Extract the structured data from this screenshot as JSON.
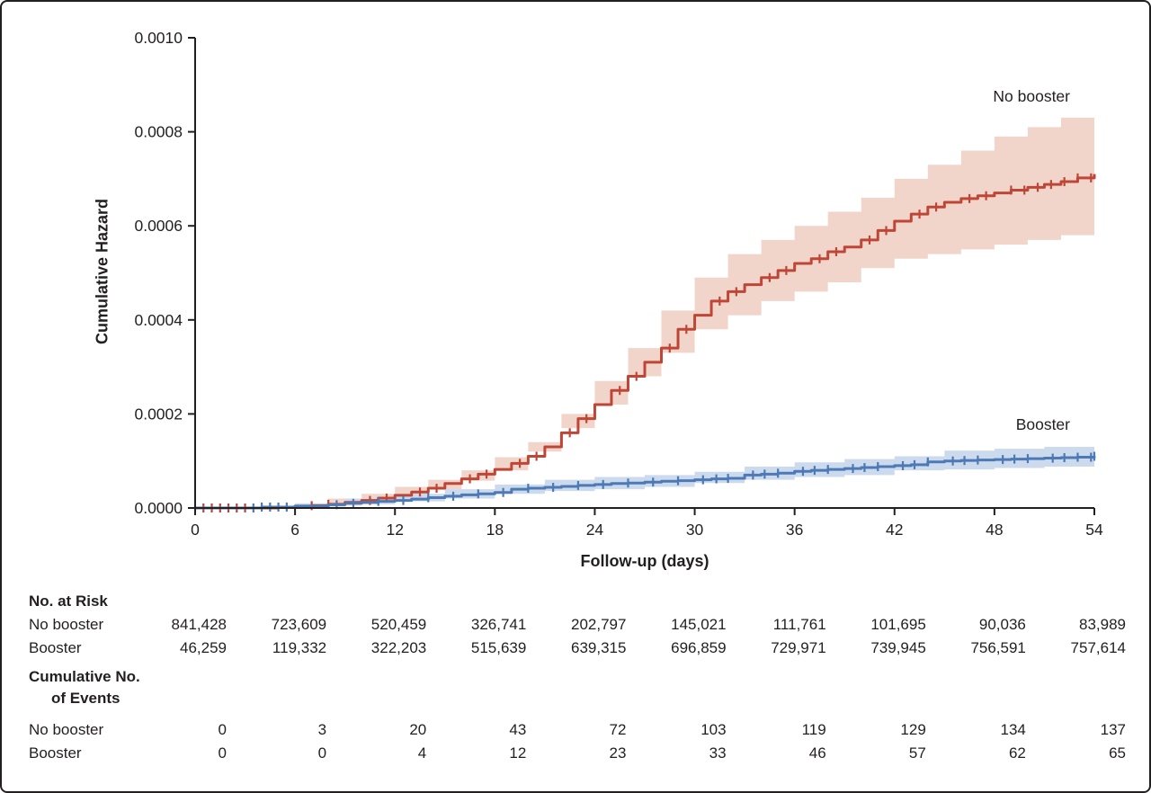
{
  "figure": {
    "background": "#ffffff",
    "border_color": "#231f20"
  },
  "chart_data": {
    "type": "line",
    "subtype": "cumulative-hazard-step-with-ci-bands",
    "title": "",
    "xlabel": "Follow-up (days)",
    "ylabel": "Cumulative Hazard",
    "xlim": [
      0,
      54
    ],
    "ylim": [
      0,
      0.001
    ],
    "grid": false,
    "legend_position": "curve-end-labels",
    "xticks": [
      {
        "v": 0,
        "label": "0"
      },
      {
        "v": 6,
        "label": "6"
      },
      {
        "v": 12,
        "label": "12"
      },
      {
        "v": 18,
        "label": "18"
      },
      {
        "v": 24,
        "label": "24"
      },
      {
        "v": 30,
        "label": "30"
      },
      {
        "v": 36,
        "label": "36"
      },
      {
        "v": 42,
        "label": "42"
      },
      {
        "v": 48,
        "label": "48"
      },
      {
        "v": 54,
        "label": "54"
      }
    ],
    "yticks": [
      {
        "v": 0.0,
        "label": "0.0000"
      },
      {
        "v": 0.0002,
        "label": "0.0002"
      },
      {
        "v": 0.0004,
        "label": "0.0004"
      },
      {
        "v": 0.0006,
        "label": "0.0006"
      },
      {
        "v": 0.0008,
        "label": "0.0008"
      },
      {
        "v": 0.001,
        "label": "0.0010"
      }
    ],
    "series": [
      {
        "name": "No booster",
        "curve_name": "no-booster-curve",
        "band_name": "no-booster-ci-band",
        "color": "#bf4637",
        "band_color": "#f1d5cb",
        "points": [
          [
            0,
            0
          ],
          [
            5,
            2e-06
          ],
          [
            7,
            5e-06
          ],
          [
            8,
            8e-06
          ],
          [
            9,
            1.2e-05
          ],
          [
            10,
            1.6e-05
          ],
          [
            11,
            2.1e-05
          ],
          [
            12,
            2.7e-05
          ],
          [
            13,
            3.4e-05
          ],
          [
            14,
            4.2e-05
          ],
          [
            15,
            5.2e-05
          ],
          [
            16,
            6.2e-05
          ],
          [
            17,
            7.2e-05
          ],
          [
            18,
            8.2e-05
          ],
          [
            19,
            9.5e-05
          ],
          [
            20,
            0.00011
          ],
          [
            21,
            0.00013
          ],
          [
            22,
            0.00016
          ],
          [
            23,
            0.00019
          ],
          [
            24,
            0.00022
          ],
          [
            25,
            0.00025
          ],
          [
            26,
            0.00028
          ],
          [
            27,
            0.00031
          ],
          [
            28,
            0.00034
          ],
          [
            29,
            0.00038
          ],
          [
            30,
            0.00041
          ],
          [
            31,
            0.00044
          ],
          [
            32,
            0.00046
          ],
          [
            33,
            0.000475
          ],
          [
            34,
            0.00049
          ],
          [
            35,
            0.000505
          ],
          [
            36,
            0.00052
          ],
          [
            37,
            0.00053
          ],
          [
            38,
            0.000545
          ],
          [
            39,
            0.000555
          ],
          [
            40,
            0.00057
          ],
          [
            41,
            0.00059
          ],
          [
            42,
            0.00061
          ],
          [
            43,
            0.000625
          ],
          [
            44,
            0.00064
          ],
          [
            45,
            0.00065
          ],
          [
            46,
            0.000658
          ],
          [
            47,
            0.000664
          ],
          [
            48,
            0.00067
          ],
          [
            49,
            0.000676
          ],
          [
            50,
            0.000682
          ],
          [
            51,
            0.000688
          ],
          [
            52,
            0.000694
          ],
          [
            53,
            0.000702
          ],
          [
            54,
            0.00071
          ]
        ],
        "band": [
          [
            8,
            0,
            2e-05
          ],
          [
            10,
            5e-06,
            3e-05
          ],
          [
            12,
            1.4e-05,
            4.5e-05
          ],
          [
            14,
            2.5e-05,
            6e-05
          ],
          [
            16,
            4e-05,
            8e-05
          ],
          [
            18,
            5.8e-05,
            0.000108
          ],
          [
            20,
            8e-05,
            0.00014
          ],
          [
            22,
            0.00012,
            0.0002
          ],
          [
            24,
            0.00017,
            0.00027
          ],
          [
            26,
            0.00022,
            0.00034
          ],
          [
            28,
            0.00028,
            0.00042
          ],
          [
            30,
            0.00033,
            0.00049
          ],
          [
            32,
            0.00038,
            0.00054
          ],
          [
            34,
            0.00041,
            0.00057
          ],
          [
            36,
            0.00044,
            0.0006
          ],
          [
            38,
            0.00046,
            0.00063
          ],
          [
            40,
            0.00048,
            0.00066
          ],
          [
            42,
            0.00051,
            0.0007
          ],
          [
            44,
            0.00053,
            0.00073
          ],
          [
            46,
            0.00054,
            0.00076
          ],
          [
            48,
            0.00055,
            0.00079
          ],
          [
            50,
            0.00056,
            0.00081
          ],
          [
            52,
            0.00057,
            0.00083
          ],
          [
            54,
            0.00058,
            0.00085
          ]
        ],
        "censor_days": [
          0.5,
          1,
          1.5,
          2,
          2.5,
          3,
          7,
          8,
          10.5,
          11.5,
          13.5,
          14.5,
          16.5,
          17.5,
          19.5,
          20.5,
          22.5,
          23.5,
          25.5,
          26.5,
          28.5,
          29.5,
          31.5,
          32.5,
          34.5,
          35.5,
          37.5,
          38.5,
          40.5,
          41.5,
          43.5,
          44.5,
          46.5,
          47.5,
          49,
          49.8,
          50.6,
          51.4,
          52.2,
          53,
          53.8
        ]
      },
      {
        "name": "Booster",
        "curve_name": "booster-curve",
        "band_name": "booster-ci-band",
        "color": "#4d79b5",
        "band_color": "#ccdaee",
        "points": [
          [
            0,
            0
          ],
          [
            4,
            2e-06
          ],
          [
            6,
            4e-06
          ],
          [
            8,
            7e-06
          ],
          [
            9,
            1e-05
          ],
          [
            10,
            1.2e-05
          ],
          [
            11,
            1.4e-05
          ],
          [
            12,
            1.6e-05
          ],
          [
            13,
            1.9e-05
          ],
          [
            14,
            2.2e-05
          ],
          [
            15,
            2.5e-05
          ],
          [
            16,
            2.8e-05
          ],
          [
            17,
            3e-05
          ],
          [
            18,
            3.3e-05
          ],
          [
            19,
            4e-05
          ],
          [
            20,
            4.2e-05
          ],
          [
            21,
            4.4e-05
          ],
          [
            22,
            4.6e-05
          ],
          [
            23,
            4.8e-05
          ],
          [
            24,
            5e-05
          ],
          [
            25,
            5.2e-05
          ],
          [
            26,
            5.3e-05
          ],
          [
            27,
            5.5e-05
          ],
          [
            28,
            5.7e-05
          ],
          [
            29,
            5.8e-05
          ],
          [
            30,
            6e-05
          ],
          [
            31,
            6.2e-05
          ],
          [
            32,
            6.3e-05
          ],
          [
            33,
            7e-05
          ],
          [
            34,
            7.2e-05
          ],
          [
            35,
            7.4e-05
          ],
          [
            36,
            7.8e-05
          ],
          [
            37,
            8e-05
          ],
          [
            38,
            8.2e-05
          ],
          [
            39,
            8.4e-05
          ],
          [
            40,
            8.6e-05
          ],
          [
            41,
            8.8e-05
          ],
          [
            42,
            9e-05
          ],
          [
            43,
            9.2e-05
          ],
          [
            44,
            9.8e-05
          ],
          [
            45,
            0.0001
          ],
          [
            46,
            0.000101
          ],
          [
            47,
            0.000102
          ],
          [
            48,
            0.000103
          ],
          [
            49,
            0.000104
          ],
          [
            50,
            0.000105
          ],
          [
            51,
            0.000106
          ],
          [
            52,
            0.000107
          ],
          [
            53,
            0.000108
          ],
          [
            54,
            0.00011
          ]
        ],
        "band": [
          [
            6,
            0,
            1e-05
          ],
          [
            9,
            3e-06,
            2e-05
          ],
          [
            12,
            8e-06,
            3e-05
          ],
          [
            15,
            1.4e-05,
            4e-05
          ],
          [
            18,
            2e-05,
            5e-05
          ],
          [
            21,
            3e-05,
            6e-05
          ],
          [
            24,
            3.6e-05,
            6.6e-05
          ],
          [
            27,
            4e-05,
            7e-05
          ],
          [
            30,
            4.5e-05,
            7.7e-05
          ],
          [
            33,
            5.3e-05,
            8.8e-05
          ],
          [
            36,
            6e-05,
            9.7e-05
          ],
          [
            39,
            6.6e-05,
            0.000104
          ],
          [
            42,
            7e-05,
            0.00011
          ],
          [
            45,
            8e-05,
            0.000122
          ],
          [
            48,
            8.2e-05,
            0.000126
          ],
          [
            51,
            8.5e-05,
            0.00013
          ],
          [
            54,
            8.8e-05,
            0.000133
          ]
        ],
        "censor_days": [
          3.5,
          4,
          4.5,
          5,
          5.5,
          8.5,
          9.5,
          11,
          12.5,
          14,
          15.5,
          17,
          18.5,
          20,
          21.5,
          23,
          24.5,
          26,
          27.5,
          29,
          30.5,
          31.3,
          32,
          33.5,
          34.2,
          35,
          36.5,
          37.2,
          38,
          39.5,
          40.2,
          41,
          42.5,
          43.2,
          44,
          45.5,
          46.2,
          47,
          48.5,
          49.2,
          50,
          51.5,
          52.2,
          53,
          53.8,
          54
        ]
      }
    ]
  },
  "tables": {
    "risk": {
      "header": "No. at Risk",
      "rows": [
        {
          "label": "No booster",
          "values": [
            "841,428",
            "723,609",
            "520,459",
            "326,741",
            "202,797",
            "145,021",
            "111,761",
            "101,695",
            "90,036",
            "83,989"
          ]
        },
        {
          "label": "Booster",
          "values": [
            "46,259",
            "119,332",
            "322,203",
            "515,639",
            "639,315",
            "696,859",
            "729,971",
            "739,945",
            "756,591",
            "757,614"
          ]
        }
      ]
    },
    "events": {
      "header_line1": "Cumulative No.",
      "header_line2": "of Events",
      "rows": [
        {
          "label": "No booster",
          "values": [
            "0",
            "3",
            "20",
            "43",
            "72",
            "103",
            "119",
            "129",
            "134",
            "137"
          ]
        },
        {
          "label": "Booster",
          "values": [
            "0",
            "0",
            "4",
            "12",
            "23",
            "33",
            "46",
            "57",
            "62",
            "65"
          ]
        }
      ]
    }
  }
}
